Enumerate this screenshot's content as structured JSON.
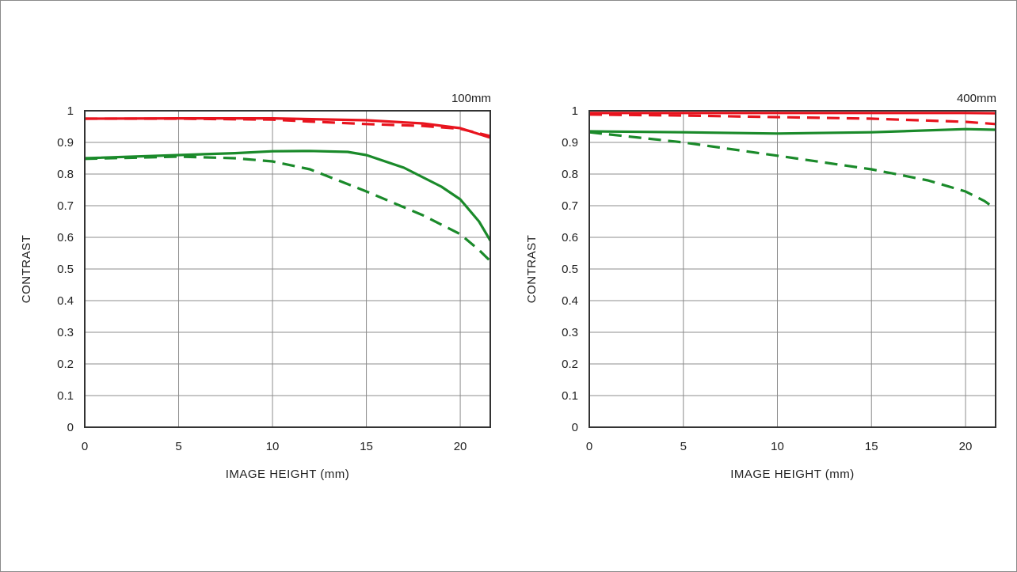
{
  "colors": {
    "red": "#e8141e",
    "green": "#1a8a2a",
    "grid": "#8c8c8c",
    "axis": "#333333"
  },
  "chart_data": [
    {
      "type": "line",
      "title": "100mm",
      "xlabel": "IMAGE HEIGHT (mm)",
      "ylabel": "CONTRAST",
      "xlim": [
        0,
        21.6
      ],
      "ylim": [
        0,
        1
      ],
      "xticks": [
        0,
        5,
        10,
        15,
        20
      ],
      "yticks": [
        0,
        0.1,
        0.2,
        0.3,
        0.4,
        0.5,
        0.6,
        0.7,
        0.8,
        0.9,
        1
      ],
      "grid": true,
      "series": [
        {
          "color": "red",
          "dash": false,
          "points": [
            [
              0,
              0.975
            ],
            [
              5,
              0.976
            ],
            [
              10,
              0.976
            ],
            [
              15,
              0.97
            ],
            [
              18,
              0.96
            ],
            [
              20,
              0.945
            ],
            [
              21.6,
              0.915
            ]
          ]
        },
        {
          "color": "red",
          "dash": true,
          "points": [
            [
              0,
              0.975
            ],
            [
              5,
              0.975
            ],
            [
              10,
              0.972
            ],
            [
              12,
              0.966
            ],
            [
              15,
              0.958
            ],
            [
              18,
              0.952
            ],
            [
              20,
              0.943
            ],
            [
              21.6,
              0.92
            ]
          ]
        },
        {
          "color": "green",
          "dash": false,
          "points": [
            [
              0,
              0.85
            ],
            [
              5,
              0.86
            ],
            [
              8,
              0.866
            ],
            [
              10,
              0.872
            ],
            [
              12,
              0.873
            ],
            [
              14,
              0.87
            ],
            [
              15,
              0.86
            ],
            [
              17,
              0.82
            ],
            [
              19,
              0.76
            ],
            [
              20,
              0.72
            ],
            [
              21,
              0.65
            ],
            [
              21.6,
              0.59
            ]
          ]
        },
        {
          "color": "green",
          "dash": true,
          "points": [
            [
              0,
              0.848
            ],
            [
              5,
              0.855
            ],
            [
              8,
              0.85
            ],
            [
              10,
              0.84
            ],
            [
              12,
              0.815
            ],
            [
              15,
              0.745
            ],
            [
              18,
              0.67
            ],
            [
              20,
              0.61
            ],
            [
              21,
              0.56
            ],
            [
              21.6,
              0.525
            ]
          ]
        }
      ]
    },
    {
      "type": "line",
      "title": "400mm",
      "xlabel": "IMAGE HEIGHT (mm)",
      "ylabel": "CONTRAST",
      "xlim": [
        0,
        21.6
      ],
      "ylim": [
        0,
        1
      ],
      "xticks": [
        0,
        5,
        10,
        15,
        20
      ],
      "yticks": [
        0,
        0.1,
        0.2,
        0.3,
        0.4,
        0.5,
        0.6,
        0.7,
        0.8,
        0.9,
        1
      ],
      "grid": true,
      "series": [
        {
          "color": "red",
          "dash": false,
          "points": [
            [
              0,
              0.993
            ],
            [
              5,
              0.993
            ],
            [
              10,
              0.993
            ],
            [
              15,
              0.993
            ],
            [
              20,
              0.993
            ],
            [
              21.6,
              0.992
            ]
          ]
        },
        {
          "color": "red",
          "dash": true,
          "points": [
            [
              0,
              0.988
            ],
            [
              5,
              0.985
            ],
            [
              10,
              0.98
            ],
            [
              15,
              0.975
            ],
            [
              20,
              0.965
            ],
            [
              21.6,
              0.958
            ]
          ]
        },
        {
          "color": "green",
          "dash": false,
          "points": [
            [
              0,
              0.935
            ],
            [
              5,
              0.932
            ],
            [
              10,
              0.928
            ],
            [
              15,
              0.932
            ],
            [
              20,
              0.942
            ],
            [
              21.6,
              0.94
            ]
          ]
        },
        {
          "color": "green",
          "dash": true,
          "points": [
            [
              0,
              0.932
            ],
            [
              5,
              0.9
            ],
            [
              10,
              0.858
            ],
            [
              15,
              0.815
            ],
            [
              18,
              0.78
            ],
            [
              20,
              0.745
            ],
            [
              21,
              0.715
            ],
            [
              21.6,
              0.69
            ]
          ]
        }
      ]
    }
  ]
}
